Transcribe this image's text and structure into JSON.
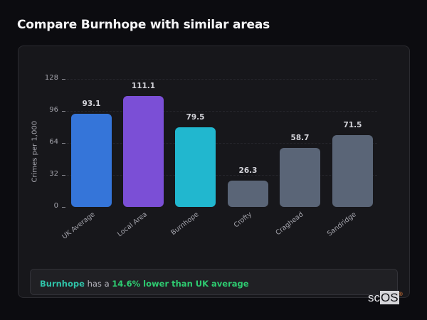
{
  "page": {
    "title": "Compare Burnhope with similar areas"
  },
  "chart_data": {
    "type": "bar",
    "title": "Compare Burnhope with similar areas",
    "xlabel": "",
    "ylabel": "Crimes per 1,000",
    "ylim": [
      0,
      128
    ],
    "yticks": [
      0,
      32,
      64,
      96,
      128
    ],
    "grid": true,
    "legend": null,
    "categories": [
      "UK Average",
      "Local Area",
      "Burnhope",
      "Crofty",
      "Craghead",
      "Sandridge"
    ],
    "values": [
      93.1,
      111.1,
      79.5,
      26.3,
      58.7,
      71.5
    ],
    "value_labels": [
      "93.1",
      "111.1",
      "79.5",
      "26.3",
      "58.7",
      "71.5"
    ],
    "colors": [
      "#3575d9",
      "#7b4fd6",
      "#21b7cf",
      "#5a6577",
      "#5a6577",
      "#5a6577"
    ]
  },
  "note": {
    "area": "Burnhope",
    "middle": " has a ",
    "diff": "14.6% lower than UK average"
  },
  "logo": {
    "prefix": "sc",
    "boxed": "OS",
    "mark": "®"
  }
}
